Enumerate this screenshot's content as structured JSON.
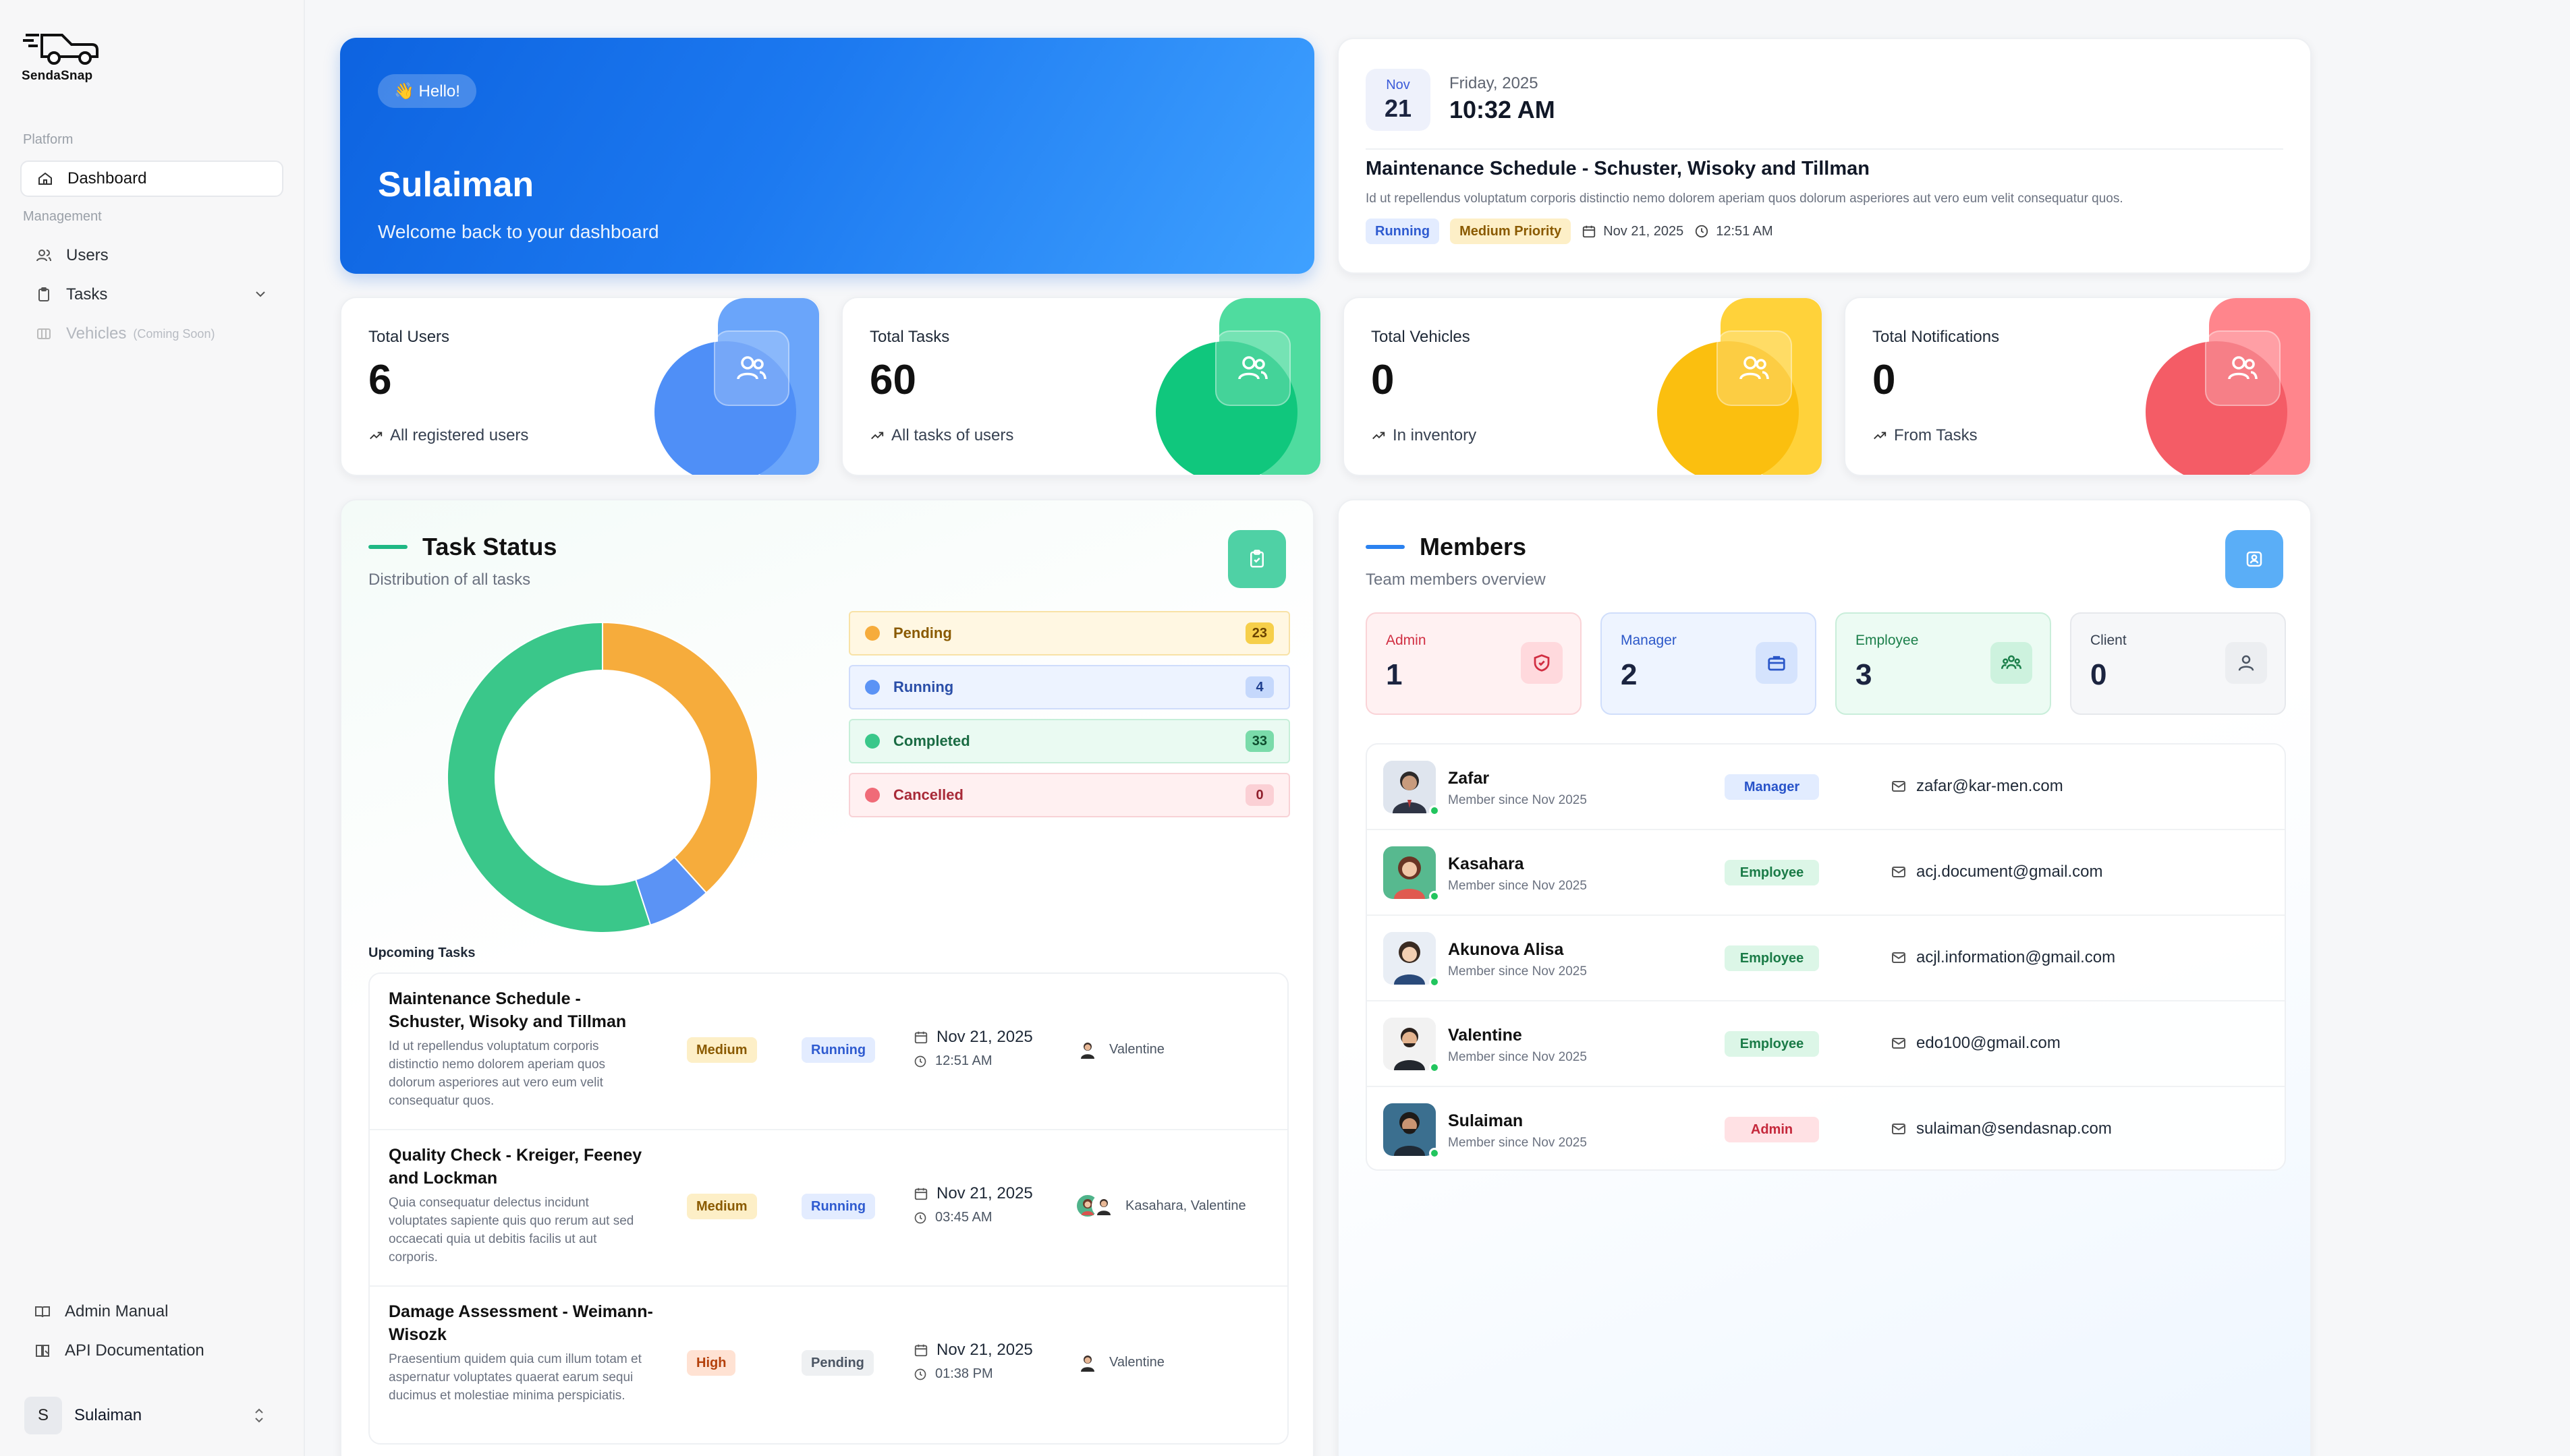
{
  "app": {
    "brand": "SendaSnap"
  },
  "sidebar": {
    "platform_label": "Platform",
    "management_label": "Management",
    "items": [
      {
        "label": "Dashboard",
        "icon": "home-icon"
      },
      {
        "label": "Users",
        "icon": "users-icon"
      },
      {
        "label": "Tasks",
        "icon": "clipboard-icon"
      },
      {
        "label": "Vehicles",
        "note": "(Coming Soon)",
        "icon": "vehicle-icon"
      }
    ],
    "footer_items": [
      {
        "label": "Admin Manual",
        "icon": "book-icon"
      },
      {
        "label": "API Documentation",
        "icon": "docs-icon"
      }
    ],
    "user": {
      "initial": "S",
      "name": "Sulaiman"
    }
  },
  "hero": {
    "pill": "👋 Hello!",
    "name": "Sulaiman",
    "subtitle": "Welcome back to your dashboard"
  },
  "schedule": {
    "month": "Nov",
    "day": "21",
    "weekday": "Friday, 2025",
    "time": "10:32 AM",
    "title": "Maintenance Schedule - Schuster, Wisoky and Tillman",
    "description": "Id ut repellendus voluptatum corporis distinctio nemo dolorem aperiam quos dolorum asperiores aut vero eum velit consequatur quos.",
    "status": "Running",
    "priority": "Medium Priority",
    "date": "Nov 21, 2025",
    "clock": "12:51 AM"
  },
  "stats": [
    {
      "label": "Total Users",
      "value": "6",
      "foot": "All registered users",
      "color": "#4f8ff7"
    },
    {
      "label": "Total Tasks",
      "value": "60",
      "foot": "All tasks of users",
      "color": "#10c77d"
    },
    {
      "label": "Total Vehicles",
      "value": "0",
      "foot": "In inventory",
      "color": "#fbbf0f"
    },
    {
      "label": "Total Notifications",
      "value": "0",
      "foot": "From Tasks",
      "color": "#f45c66"
    }
  ],
  "task_status": {
    "title": "Task Status",
    "subtitle": "Distribution of all tasks",
    "legend": [
      {
        "label": "Pending",
        "count": "23",
        "color": "#f6ac3c"
      },
      {
        "label": "Running",
        "count": "4",
        "color": "#5b93f5"
      },
      {
        "label": "Completed",
        "count": "33",
        "color": "#3ac78a"
      },
      {
        "label": "Cancelled",
        "count": "0",
        "color": "#f06b78"
      }
    ],
    "upcoming_label": "Upcoming Tasks",
    "tasks": [
      {
        "title": "Maintenance Schedule - Schuster, Wisoky and Tillman",
        "description": "Id ut repellendus voluptatum corporis distinctio nemo dolorem aperiam quos dolorum asperiores aut vero eum velit consequatur quos.",
        "priority": "Medium",
        "status": "Running",
        "date": "Nov 21, 2025",
        "time": "12:51 AM",
        "assignee": "Valentine"
      },
      {
        "title": "Quality Check - Kreiger, Feeney and Lockman",
        "description": "Quia consequatur delectus incidunt voluptates sapiente quis quo rerum aut sed occaecati quia ut debitis facilis ut aut corporis.",
        "priority": "Medium",
        "status": "Running",
        "date": "Nov 21, 2025",
        "time": "03:45 AM",
        "assignee": "Kasahara, Valentine"
      },
      {
        "title": "Damage Assessment - Weimann-Wisozk",
        "description": "Praesentium quidem quia cum illum totam et aspernatur voluptates quaerat earum sequi ducimus et molestiae minima perspiciatis.",
        "priority": "High",
        "status": "Pending",
        "date": "Nov 21, 2025",
        "time": "01:38 PM",
        "assignee": "Valentine"
      }
    ]
  },
  "chart_data": {
    "type": "pie",
    "categories": [
      "Pending",
      "Running",
      "Completed",
      "Cancelled"
    ],
    "values": [
      23,
      4,
      33,
      0
    ],
    "colors": [
      "#f6ac3c",
      "#5b93f5",
      "#3ac78a",
      "#f06b78"
    ]
  },
  "members": {
    "title": "Members",
    "subtitle": "Team members overview",
    "roles": [
      {
        "label": "Admin",
        "count": "1",
        "icon": "shield-icon"
      },
      {
        "label": "Manager",
        "count": "2",
        "icon": "briefcase-icon"
      },
      {
        "label": "Employee",
        "count": "3",
        "icon": "team-icon"
      },
      {
        "label": "Client",
        "count": "0",
        "icon": "person-icon"
      }
    ],
    "list": [
      {
        "name": "Zafar",
        "since": "Member since Nov 2025",
        "role": "Manager",
        "email": "zafar@kar-men.com"
      },
      {
        "name": "Kasahara",
        "since": "Member since Nov 2025",
        "role": "Employee",
        "email": "acj.document@gmail.com"
      },
      {
        "name": "Akunova Alisa",
        "since": "Member since Nov 2025",
        "role": "Employee",
        "email": "acjl.information@gmail.com"
      },
      {
        "name": "Valentine",
        "since": "Member since Nov 2025",
        "role": "Employee",
        "email": "edo100@gmail.com"
      },
      {
        "name": "Sulaiman",
        "since": "Member since Nov 2025",
        "role": "Admin",
        "email": "sulaiman@sendasnap.com"
      }
    ]
  }
}
